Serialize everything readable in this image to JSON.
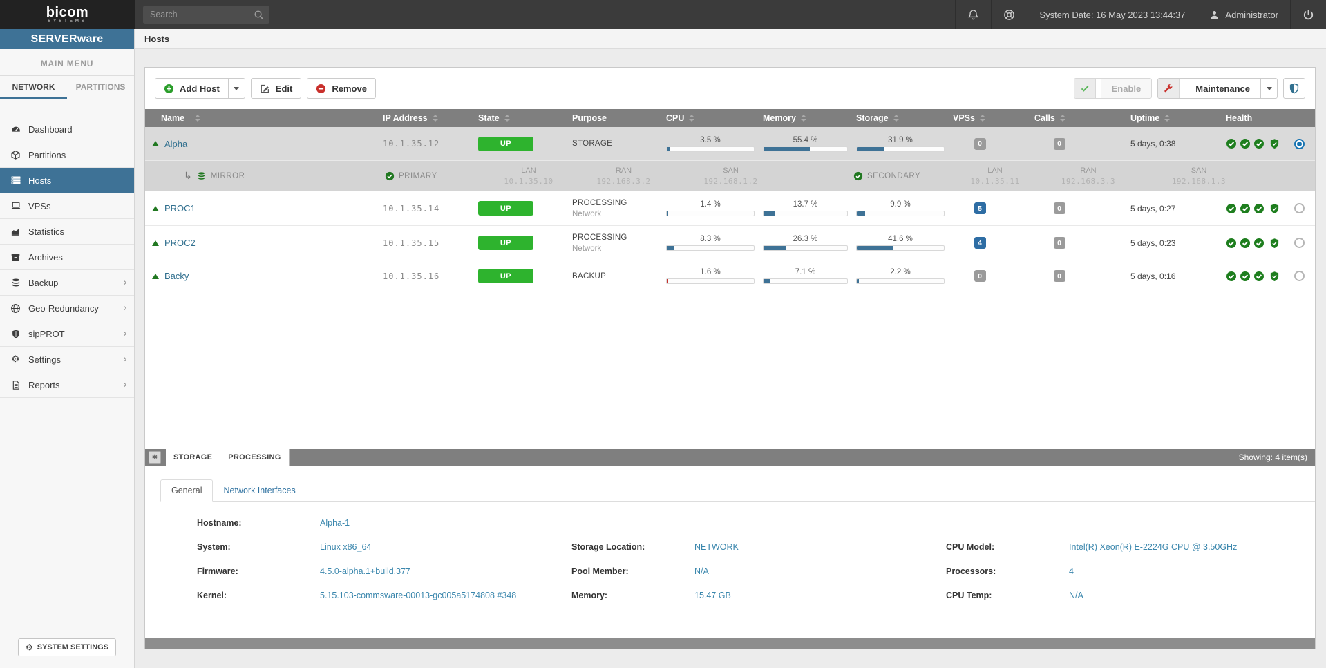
{
  "colors": {
    "brand_blue": "#3e7296",
    "state_green": "#2eb32e",
    "health_green": "#1e7e1e",
    "alert_red": "#c9302c",
    "link_blue": "#31708f",
    "value_blue": "#3b87ad",
    "badge_blue": "#2e6da4",
    "badge_grey": "#9b9b9b"
  },
  "topbar": {
    "search_placeholder": "Search",
    "system_date": "System Date: 16 May 2023 13:44:37",
    "user": "Administrator"
  },
  "sidebar": {
    "brand": "SERVERware",
    "logo_main": "bicom",
    "logo_sub": "SYSTEMS",
    "section": "MAIN MENU",
    "tabs": [
      {
        "label": "NETWORK"
      },
      {
        "label": "PARTITIONS"
      }
    ],
    "items": [
      {
        "label": "Dashboard"
      },
      {
        "label": "Partitions"
      },
      {
        "label": "Hosts"
      },
      {
        "label": "VPSs"
      },
      {
        "label": "Statistics"
      },
      {
        "label": "Archives"
      },
      {
        "label": "Backup"
      },
      {
        "label": "Geo-Redundancy"
      },
      {
        "label": "sipPROT"
      },
      {
        "label": "Settings"
      },
      {
        "label": "Reports"
      }
    ],
    "system_settings": "SYSTEM SETTINGS"
  },
  "page": {
    "title": "Hosts"
  },
  "toolbar": {
    "add_host": "Add Host",
    "edit": "Edit",
    "remove": "Remove",
    "enable": "Enable",
    "maintenance": "Maintenance"
  },
  "table": {
    "headers": {
      "name": "Name",
      "ip": "IP Address",
      "state": "State",
      "purpose": "Purpose",
      "cpu": "CPU",
      "memory": "Memory",
      "storage": "Storage",
      "vpss": "VPSs",
      "calls": "Calls",
      "uptime": "Uptime",
      "health": "Health"
    },
    "rows": [
      {
        "name": "Alpha",
        "ip": "10.1.35.12",
        "state": "UP",
        "purpose": "STORAGE",
        "purpose_sub": "",
        "cpu_label": "3.5 %",
        "cpu_pct": 3.5,
        "mem_label": "55.4 %",
        "mem_pct": 55.4,
        "sto_label": "31.9 %",
        "sto_pct": 31.9,
        "vps": "0",
        "calls": "0",
        "uptime": "5 days, 0:38"
      },
      {
        "name": "PROC1",
        "ip": "10.1.35.14",
        "state": "UP",
        "purpose": "PROCESSING",
        "purpose_sub": "Network",
        "cpu_label": "1.4 %",
        "cpu_pct": 1.4,
        "mem_label": "13.7 %",
        "mem_pct": 13.7,
        "sto_label": "9.9 %",
        "sto_pct": 9.9,
        "vps": "5",
        "calls": "0",
        "uptime": "5 days, 0:27"
      },
      {
        "name": "PROC2",
        "ip": "10.1.35.15",
        "state": "UP",
        "purpose": "PROCESSING",
        "purpose_sub": "Network",
        "cpu_label": "8.3 %",
        "cpu_pct": 8.3,
        "mem_label": "26.3 %",
        "mem_pct": 26.3,
        "sto_label": "41.6 %",
        "sto_pct": 41.6,
        "vps": "4",
        "calls": "0",
        "uptime": "5 days, 0:23"
      },
      {
        "name": "Backy",
        "ip": "10.1.35.16",
        "state": "UP",
        "purpose": "BACKUP",
        "purpose_sub": "",
        "cpu_label": "1.6 %",
        "cpu_pct": 1.6,
        "mem_label": "7.1 %",
        "mem_pct": 7.1,
        "sto_label": "2.2 %",
        "sto_pct": 2.2,
        "vps": "0",
        "calls": "0",
        "uptime": "5 days, 0:16"
      }
    ],
    "mirror": {
      "label": "MIRROR",
      "primary": "PRIMARY",
      "secondary": "SECONDARY",
      "p_lan_label": "LAN",
      "p_lan": "10.1.35.10",
      "p_ran_label": "RAN",
      "p_ran": "192.168.3.2",
      "p_san_label": "SAN",
      "p_san": "192.168.1.2",
      "s_lan_label": "LAN",
      "s_lan": "10.1.35.11",
      "s_ran_label": "RAN",
      "s_ran": "192.168.3.3",
      "s_san_label": "SAN",
      "s_san": "192.168.1.3"
    },
    "showing": "Showing: 4 item(s)"
  },
  "bottom_tabs": {
    "storage": "STORAGE",
    "processing": "PROCESSING"
  },
  "detail": {
    "tab_general": "General",
    "tab_network": "Network Interfaces",
    "fields": {
      "hostname_label": "Hostname:",
      "hostname": "Alpha-1",
      "system_label": "System:",
      "system": "Linux x86_64",
      "firmware_label": "Firmware:",
      "firmware": "4.5.0-alpha.1+build.377",
      "kernel_label": "Kernel:",
      "kernel": "5.15.103-commsware-00013-gc005a5174808 #348",
      "storage_location_label": "Storage Location:",
      "storage_location": "NETWORK",
      "pool_member_label": "Pool Member:",
      "pool_member": "N/A",
      "memory_label": "Memory:",
      "memory": "15.47 GB",
      "cpu_model_label": "CPU Model:",
      "cpu_model": "Intel(R) Xeon(R) E-2224G CPU @ 3.50GHz",
      "processors_label": "Processors:",
      "processors": "4",
      "cpu_temp_label": "CPU Temp:",
      "cpu_temp": "N/A"
    }
  }
}
